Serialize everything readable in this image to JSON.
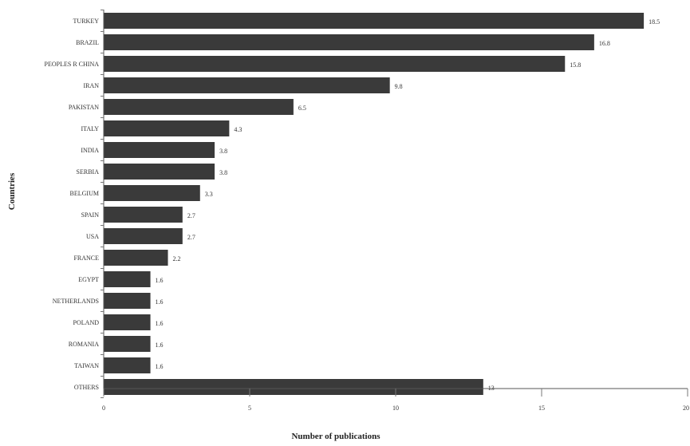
{
  "chart_data": {
    "type": "bar",
    "orientation": "horizontal",
    "categories": [
      "TURKEY",
      "BRAZIL",
      "PEOPLES R CHINA",
      "IRAN",
      "PAKISTAN",
      "ITALY",
      "INDIA",
      "SERBIA",
      "BELGIUM",
      "SPAIN",
      "USA",
      "FRANCE",
      "EGYPT",
      "NETHERLANDS",
      "POLAND",
      "ROMANIA",
      "TAIWAN",
      "OTHERS"
    ],
    "values": [
      18.5,
      16.8,
      15.8,
      9.8,
      6.5,
      4.3,
      3.8,
      3.8,
      3.3,
      2.7,
      2.7,
      2.2,
      1.6,
      1.6,
      1.6,
      1.6,
      1.6,
      13
    ],
    "value_labels": [
      "18.5",
      "16.8",
      "15.8",
      "9.8",
      "6.5",
      "4.3",
      "3.8",
      "3.8",
      "3.3",
      "2.7",
      "2.7",
      "2.2",
      "1.6",
      "1.6",
      "1.6",
      "1.6",
      "1.6",
      "13"
    ],
    "xlabel": "Number of publications",
    "ylabel": "Countries",
    "xlim": [
      0,
      20
    ],
    "xticks": [
      0,
      5,
      10,
      15,
      20
    ],
    "xtick_labels": [
      "0",
      "5",
      "10",
      "15",
      "20"
    ],
    "grid": false,
    "legend": "none",
    "bar_color": "#3a3a3a"
  }
}
